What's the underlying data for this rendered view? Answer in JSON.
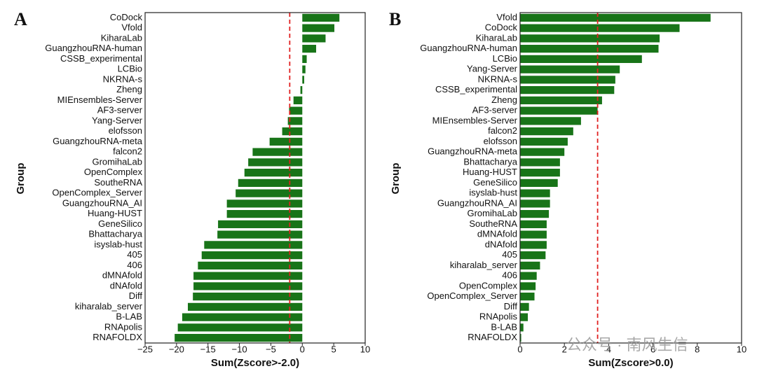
{
  "chart_data": [
    {
      "type": "barh",
      "panel_label": "A",
      "x_label": "Sum(Zscore>-2.0)",
      "y_label": "Group",
      "color": "#187418",
      "reference_line": -2,
      "reference_color": "#e02020",
      "categories": [
        "CoDock",
        "Vfold",
        "KiharaLab",
        "GuangzhouRNA-human",
        "CSSB_experimental",
        "LCBio",
        "NKRNA-s",
        "Zheng",
        "MIEnsembles-Server",
        "AF3-server",
        "Yang-Server",
        "elofsson",
        "GuangzhouRNA-meta",
        "falcon2",
        "GromihaLab",
        "OpenComplex",
        "SoutheRNA",
        "OpenComplex_Server",
        "GuangzhouRNA_AI",
        "Huang-HUST",
        "GeneSilico",
        "Bhattacharya",
        "isyslab-hust",
        "405",
        "406",
        "dMNAfold",
        "dNAfold",
        "Diff",
        "kiharalab_server",
        "B-LAB",
        "RNApolis",
        "RNAFOLDX"
      ],
      "values": [
        5.9,
        5.1,
        3.7,
        2.2,
        0.7,
        0.5,
        0.3,
        -0.3,
        -1.4,
        -2.1,
        -2.3,
        -3.2,
        -5.2,
        -7.9,
        -8.6,
        -9.2,
        -10.2,
        -10.6,
        -12.0,
        -12.0,
        -13.4,
        -13.5,
        -15.6,
        -16.0,
        -16.6,
        -17.3,
        -17.3,
        -17.4,
        -18.2,
        -19.1,
        -19.8,
        -20.3
      ],
      "xlim": [
        -25,
        10
      ],
      "xticks": [
        {
          "value": -25,
          "label": "−25"
        },
        {
          "value": -20,
          "label": "−20"
        },
        {
          "value": -15,
          "label": "−15"
        },
        {
          "value": -10,
          "label": "−10"
        },
        {
          "value": -5,
          "label": "−5"
        },
        0,
        5,
        10
      ]
    },
    {
      "type": "barh",
      "panel_label": "B",
      "x_label": "Sum(Zscore>0.0)",
      "y_label": "Group",
      "color": "#187418",
      "reference_line": 3.5,
      "reference_color": "#e02020",
      "categories": [
        "Vfold",
        "CoDock",
        "KiharaLab",
        "GuangzhouRNA-human",
        "LCBio",
        "Yang-Server",
        "NKRNA-s",
        "CSSB_experimental",
        "Zheng",
        "AF3-server",
        "MIEnsembles-Server",
        "falcon2",
        "elofsson",
        "GuangzhouRNA-meta",
        "Bhattacharya",
        "Huang-HUST",
        "GeneSilico",
        "isyslab-hust",
        "GuangzhouRNA_AI",
        "GromihaLab",
        "SoutheRNA",
        "dMNAfold",
        "dNAfold",
        "405",
        "kiharalab_server",
        "406",
        "OpenComplex",
        "OpenComplex_Server",
        "Diff",
        "RNApolis",
        "B-LAB",
        "RNAFOLDX"
      ],
      "values": [
        8.6,
        7.2,
        6.3,
        6.25,
        5.5,
        4.5,
        4.3,
        4.25,
        3.7,
        3.5,
        2.75,
        2.4,
        2.15,
        2.0,
        1.8,
        1.8,
        1.7,
        1.35,
        1.35,
        1.3,
        1.2,
        1.2,
        1.2,
        1.15,
        0.9,
        0.75,
        0.7,
        0.65,
        0.4,
        0.35,
        0.15,
        0.05
      ],
      "xlim": [
        0,
        10
      ],
      "xticks": [
        0,
        2,
        4,
        6,
        8,
        10
      ]
    }
  ],
  "watermark": "公众号 · 南风生信"
}
